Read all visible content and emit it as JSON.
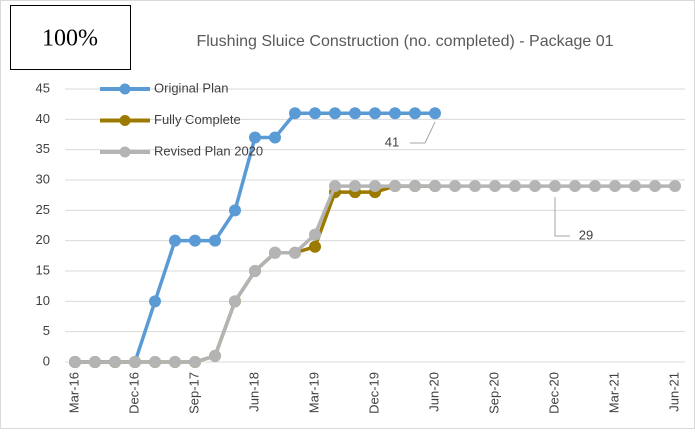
{
  "chart_data": {
    "type": "line",
    "badge": "100%",
    "title": "Flushing Sluice Construction (no. completed) - Package 01",
    "categories": [
      "Mar-16",
      null,
      null,
      "Dec-16",
      null,
      null,
      "Sep-17",
      null,
      null,
      "Jun-18",
      null,
      null,
      "Mar-19",
      null,
      null,
      "Dec-19",
      null,
      null,
      "Jun-20",
      null,
      null,
      "Sep-20",
      null,
      null,
      "Dec-20",
      null,
      null,
      "Mar-21",
      null,
      null,
      "Jun-21"
    ],
    "series": [
      {
        "name": "Original Plan",
        "color": "#5b9bd5",
        "values": [
          0,
          0,
          0,
          0,
          10,
          20,
          20,
          20,
          25,
          37,
          37,
          41,
          41,
          41,
          41,
          41,
          41,
          41,
          41,
          null,
          null,
          null,
          null,
          null,
          null,
          null,
          null,
          null,
          null,
          null,
          null
        ]
      },
      {
        "name": "Fully Complete",
        "color": "#9c7a00",
        "values": [
          0,
          0,
          0,
          0,
          0,
          0,
          0,
          1,
          10,
          15,
          18,
          18,
          19,
          28,
          28,
          28,
          29,
          29,
          29,
          null,
          null,
          null,
          null,
          null,
          null,
          null,
          null,
          null,
          null,
          null,
          null
        ]
      },
      {
        "name": "Revised Plan 2020",
        "color": "#b4b4b4",
        "values": [
          0,
          0,
          0,
          0,
          0,
          0,
          0,
          1,
          10,
          15,
          18,
          18,
          21,
          29,
          29,
          29,
          29,
          29,
          29,
          29,
          29,
          29,
          29,
          29,
          29,
          29,
          29,
          29,
          29,
          29,
          29
        ]
      }
    ],
    "annotations": [
      "41",
      "29"
    ],
    "ylim": [
      0,
      45
    ],
    "yticks": [
      0,
      5,
      10,
      15,
      20,
      25,
      30,
      35,
      40,
      45
    ],
    "grid": true,
    "legend": "upper left"
  }
}
